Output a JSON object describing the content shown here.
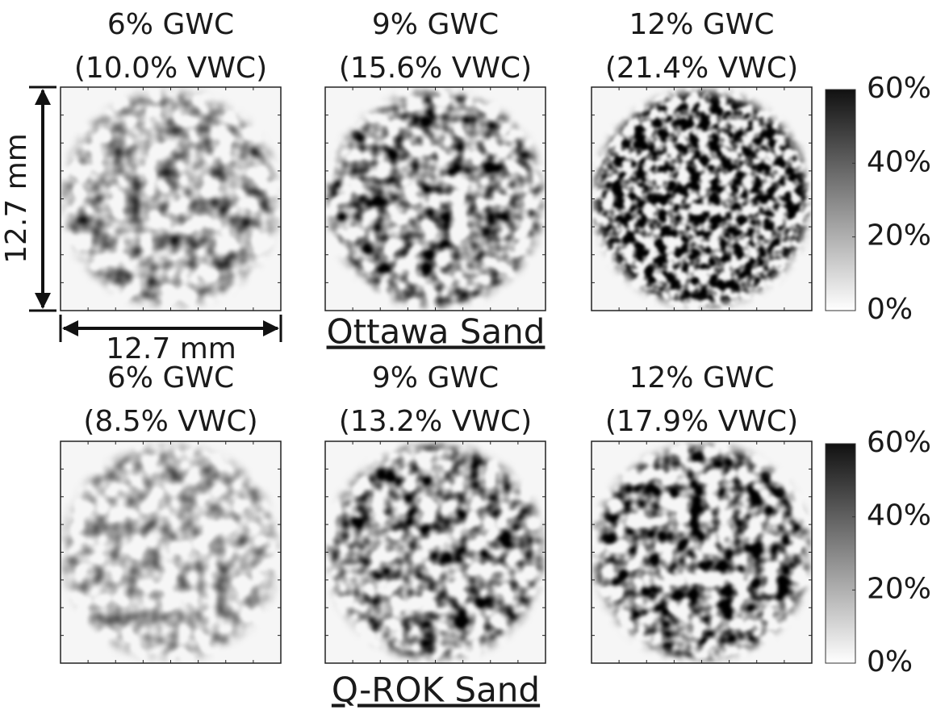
{
  "figure": {
    "groups": [
      {
        "label": "Ottawa Sand",
        "panels": [
          {
            "title": "6% GWC",
            "subtitle": "(10.0% VWC)"
          },
          {
            "title": "9% GWC",
            "subtitle": "(15.6% VWC)"
          },
          {
            "title": "12% GWC",
            "subtitle": "(21.4% VWC)"
          }
        ],
        "colorbar": {
          "ticks": [
            "60%",
            "40%",
            "20%",
            "0%"
          ]
        }
      },
      {
        "label": "Q-ROK Sand",
        "panels": [
          {
            "title": "6% GWC",
            "subtitle": "(8.5% VWC)"
          },
          {
            "title": "9% GWC",
            "subtitle": "(13.2% VWC)"
          },
          {
            "title": "12% GWC",
            "subtitle": "(17.9% VWC)"
          }
        ],
        "colorbar": {
          "ticks": [
            "60%",
            "40%",
            "20%",
            "0%"
          ]
        }
      }
    ],
    "dimensions": {
      "vertical": "12.7 mm",
      "horizontal": "12.7 mm"
    }
  }
}
